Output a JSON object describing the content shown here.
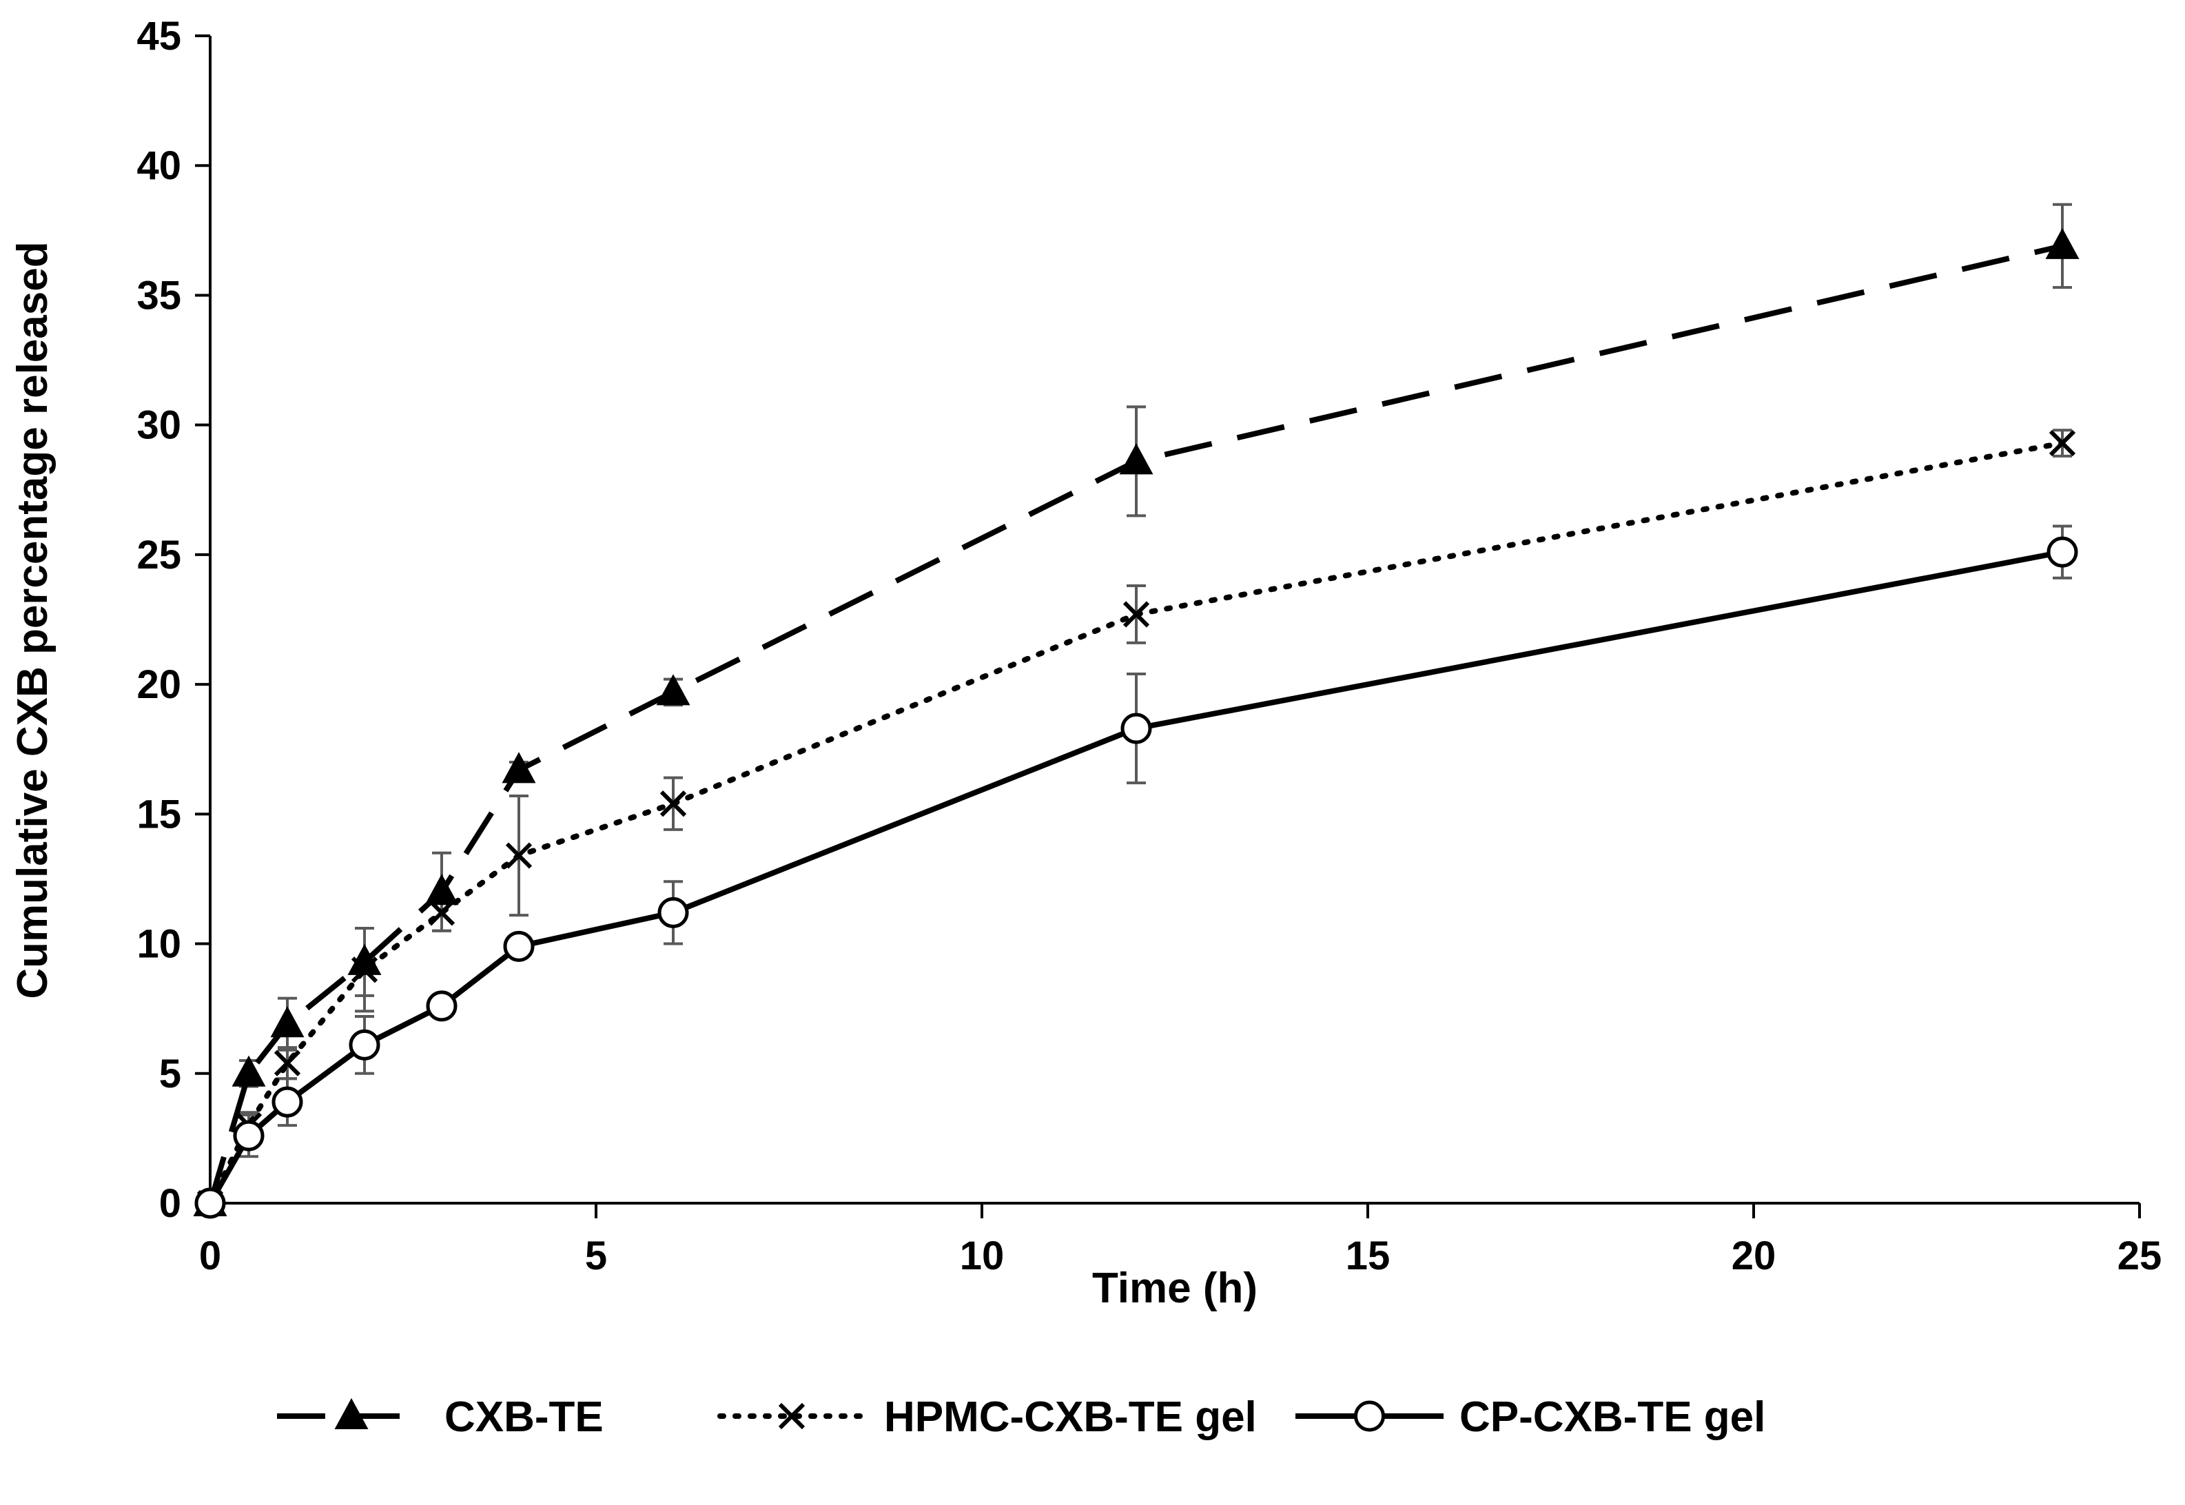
{
  "chart_data": {
    "type": "line",
    "title": "",
    "xlabel": "Time (h)",
    "ylabel": "Cumulative CXB percentage released",
    "xlim": [
      0,
      25
    ],
    "ylim": [
      0,
      45
    ],
    "x_ticks": [
      0,
      5,
      10,
      15,
      20,
      25
    ],
    "y_ticks": [
      0,
      5,
      10,
      15,
      20,
      25,
      30,
      35,
      40,
      45
    ],
    "x_tick_labels": [
      "0",
      "5",
      "10",
      "15",
      "20",
      "25"
    ],
    "y_tick_labels": [
      "0",
      "5",
      "10",
      "15",
      "20",
      "25",
      "30",
      "35",
      "40",
      "45"
    ],
    "grid": false,
    "legend_position": "bottom",
    "colors": {
      "series": "#000000",
      "error_bars": "#595959",
      "axis": "#000000"
    },
    "series": [
      {
        "name": "CXB-TE",
        "line_style": "dashed",
        "marker": "triangle",
        "x": [
          0,
          0.5,
          1,
          2,
          3,
          4,
          6,
          12,
          24
        ],
        "y": [
          0,
          5.0,
          6.9,
          9.3,
          12.0,
          16.7,
          19.7,
          28.6,
          36.9
        ],
        "error": [
          0,
          0.5,
          1.0,
          1.3,
          1.5,
          0.3,
          0.5,
          2.1,
          1.6
        ]
      },
      {
        "name": "HPMC-CXB-TE gel",
        "line_style": "dotted",
        "marker": "x",
        "x": [
          0,
          0.5,
          1,
          2,
          3,
          4,
          6,
          12,
          24
        ],
        "y": [
          0,
          3.0,
          5.4,
          9.0,
          11.2,
          13.4,
          15.4,
          22.7,
          29.3
        ],
        "error": [
          0,
          0.5,
          0.6,
          1.6,
          0.7,
          2.3,
          1.0,
          1.1,
          0.5
        ]
      },
      {
        "name": "CP-CXB-TE gel",
        "line_style": "solid",
        "marker": "circle",
        "x": [
          0,
          0.5,
          1,
          2,
          3,
          4,
          6,
          12,
          24
        ],
        "y": [
          0,
          2.6,
          3.9,
          6.1,
          7.6,
          9.9,
          11.2,
          18.3,
          25.1
        ],
        "error": [
          0,
          0.8,
          0.9,
          1.1,
          0.3,
          0.2,
          1.2,
          2.1,
          1.0
        ]
      }
    ]
  }
}
